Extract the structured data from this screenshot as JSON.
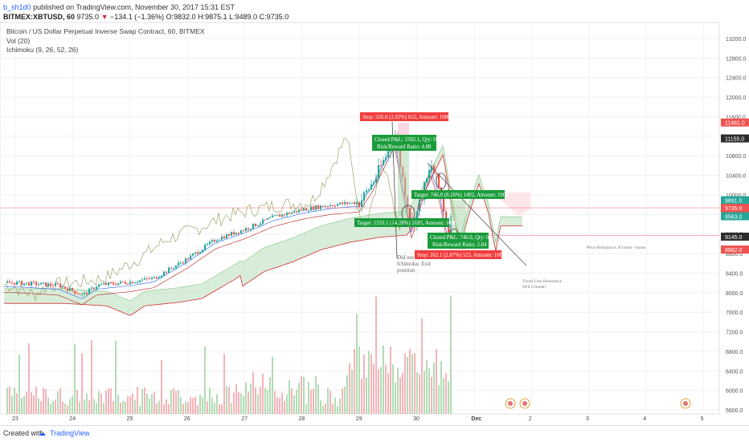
{
  "header": {
    "user": "b_sh1d0",
    "published": "published on TradingView.com, November 30, 2017 15:31 EST",
    "symbol_line": "BITMEX:XBTUSD, 60",
    "price": "9735.0",
    "change_arrow": "▼",
    "change": "−134.1 (−1.36%)",
    "ohlc": "O:9832.0 H:9875.1 L:9489.0 C:9735.0"
  },
  "chart_labels": {
    "title": "Bitcoin / US Dollar Perpetual Inverse Swap Contract, 60, BITMEX",
    "volume": "Vol (20)",
    "ichimoku": "Ichimoku (9, 26, 52, 26)"
  },
  "footer": {
    "created_with": "Created with",
    "brand": "TradingView"
  },
  "colors": {
    "up": "#26a69a",
    "down": "#ef5350",
    "cloud": "#c8e6c9",
    "leading_b": "#d32f2f",
    "lagging": "#9ba66b",
    "conversion": "#2962ff",
    "base": "#b71c1c"
  },
  "chart_data": {
    "type": "candlestick",
    "x_ticks": [
      "23",
      "24",
      "25",
      "26",
      "27",
      "28",
      "29",
      "30",
      "Dec",
      "2",
      "3",
      "4",
      "5"
    ],
    "y_ticks": [
      5600,
      6000,
      6400,
      6800,
      7200,
      7600,
      8000,
      8400,
      8800,
      9200,
      9600,
      10000,
      10400,
      10800,
      11200,
      11600,
      12000,
      12400,
      12800,
      13200
    ],
    "ylim": [
      5500,
      13400
    ],
    "price_path": [
      {
        "date": "2017-11-23T00:00",
        "close": 8200
      },
      {
        "date": "2017-11-23T18:00",
        "close": 8150
      },
      {
        "date": "2017-11-24T04:00",
        "close": 7950
      },
      {
        "date": "2017-11-24T10:00",
        "close": 8150
      },
      {
        "date": "2017-11-25T00:00",
        "close": 8220
      },
      {
        "date": "2017-11-25T10:00",
        "close": 8300
      },
      {
        "date": "2017-11-26T00:00",
        "close": 8700
      },
      {
        "date": "2017-11-26T12:00",
        "close": 9100
      },
      {
        "date": "2017-11-27T00:00",
        "close": 9300
      },
      {
        "date": "2017-11-27T12:00",
        "close": 9550
      },
      {
        "date": "2017-11-28T00:00",
        "close": 9700
      },
      {
        "date": "2017-11-28T12:00",
        "close": 9800
      },
      {
        "date": "2017-11-29T00:00",
        "close": 9850
      },
      {
        "date": "2017-11-29T06:00",
        "close": 10300
      },
      {
        "date": "2017-11-29T12:00",
        "close": 10900
      },
      {
        "date": "2017-11-29T15:00",
        "close": 11200
      },
      {
        "date": "2017-11-29T18:00",
        "close": 10300
      },
      {
        "date": "2017-11-29T22:00",
        "close": 9300
      },
      {
        "date": "2017-11-30T02:00",
        "close": 10000
      },
      {
        "date": "2017-11-30T06:00",
        "close": 10600
      },
      {
        "date": "2017-11-30T10:00",
        "close": 10000
      },
      {
        "date": "2017-11-30T13:00",
        "close": 9200
      },
      {
        "date": "2017-11-30T15:00",
        "close": 9735
      }
    ],
    "volume_note": "volume histogram shown below price (Vol 20)",
    "price_labels": [
      {
        "value": "11481.0",
        "color": "#ef5350"
      },
      {
        "value": "11155.0",
        "color": "#2d2d2d"
      },
      {
        "value": "9891.0",
        "color": "#26a69a"
      },
      {
        "value": "9735.0",
        "color": "#ef5350"
      },
      {
        "value": "28.20",
        "color": "#ef5350"
      },
      {
        "value": "9563.0",
        "color": "#26a69a"
      },
      {
        "value": "9145.0",
        "color": "#2d2d2d"
      },
      {
        "value": "8882.0",
        "color": "#ef5350"
      }
    ],
    "annotations": {
      "stop1": "Stop: 326.0 (2.92%) 652, Amount: 1000",
      "closed1a": "Closed P&L: 1592.1, Qty: 0",
      "closed1b": "Risk/Reward Ratio: 4.88",
      "target1": "Target: 1593.1 (14.28%) 3185, Amount: 1000",
      "target2": "Target: 746.0 (8.16%) 1492, Amount: 1000",
      "closed2a": "Closed P&L: 746.0, Qty: 0",
      "closed2b": "Risk/Reward Ratio: 2.84",
      "stop2": "Stop: 262.1 (2.87%) 525, Amount: 1000",
      "note1a": "Did not",
      "note1b": "Ichimoku. Exit",
      "note1c": "position",
      "resist": "Price Resistance. If break - moon",
      "trend_a": "Trend Line Resistance",
      "trend_b": "Will it break?"
    }
  }
}
